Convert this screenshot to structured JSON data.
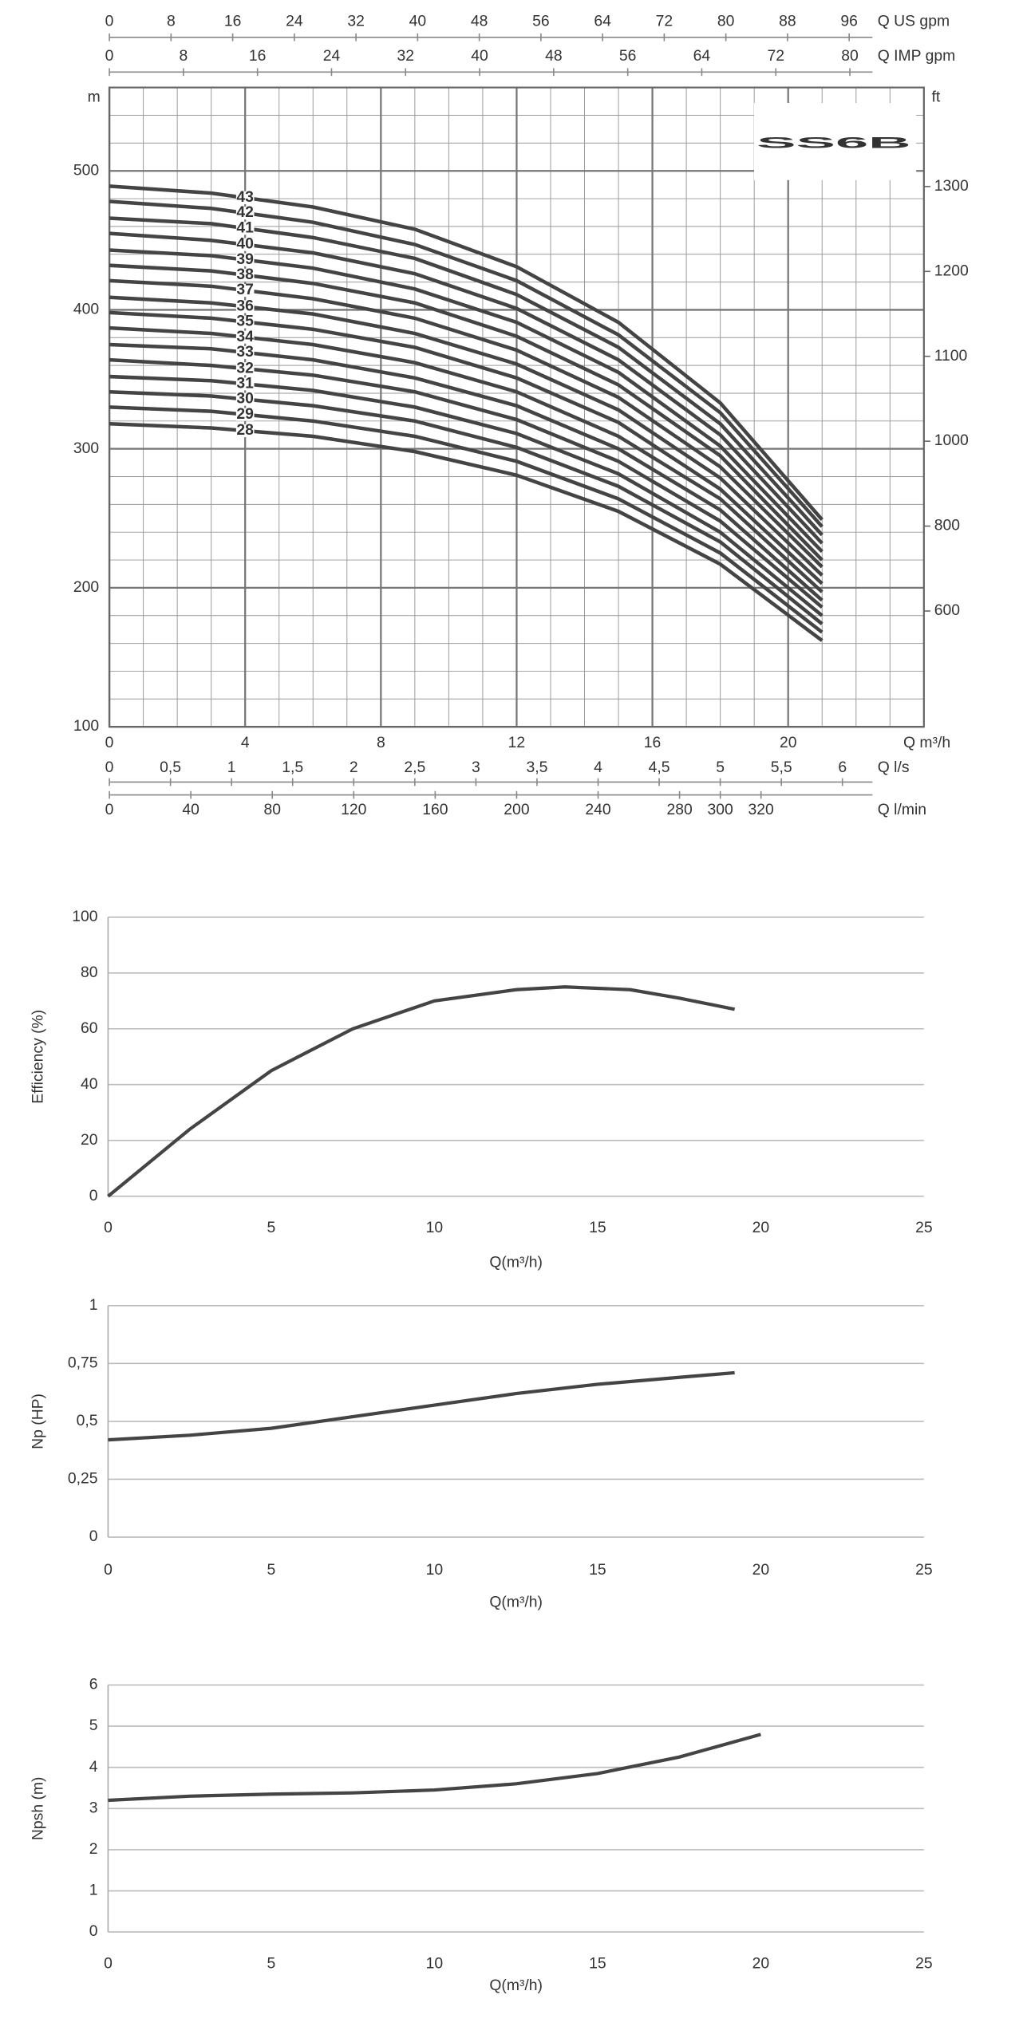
{
  "chart_data": [
    {
      "type": "line",
      "title": "SS6B",
      "ylabel": "m",
      "y2label": "ft",
      "xlabel": "Q m³/h",
      "x": [
        0,
        3,
        6,
        9,
        12,
        15,
        18,
        21
      ],
      "xlim": [
        0,
        24
      ],
      "xticks": [
        0,
        4,
        8,
        12,
        16,
        20
      ],
      "ylim": [
        100,
        560
      ],
      "yticks": [
        100,
        200,
        300,
        400,
        500
      ],
      "y2ticks": [
        1300,
        1200,
        1100,
        1000,
        800,
        600
      ],
      "grid": true,
      "minor_grid": true,
      "secondary_x_axes": [
        {
          "label": "Q US gpm",
          "side": "top",
          "xlim": [
            0,
            105.7
          ],
          "xticks": [
            0,
            8,
            16,
            24,
            32,
            40,
            48,
            56,
            64,
            72,
            80,
            88,
            96
          ]
        },
        {
          "label": "Q IMP gpm",
          "side": "top",
          "xlim": [
            0,
            88
          ],
          "xticks": [
            0,
            8,
            16,
            24,
            32,
            40,
            48,
            56,
            64,
            72,
            80
          ]
        },
        {
          "label": "Q l/s",
          "side": "bottom",
          "xlim": [
            0,
            6.667
          ],
          "xticks": [
            0,
            {
              "value": 0.5,
              "label": "0,5"
            },
            1,
            {
              "value": 1.5,
              "label": "1,5"
            },
            2,
            {
              "value": 2.5,
              "label": "2,5"
            },
            3,
            {
              "value": 3.5,
              "label": "3,5"
            },
            4,
            {
              "value": 4.5,
              "label": "4,5"
            },
            5,
            {
              "value": 5.5,
              "label": "5,5"
            },
            6
          ]
        },
        {
          "label": "Q l/min",
          "side": "bottom",
          "xlim": [
            0,
            400
          ],
          "xticks": [
            0,
            40,
            80,
            120,
            160,
            200,
            240,
            280,
            300,
            320
          ]
        }
      ],
      "series": [
        {
          "name": "28",
          "color": "#444444",
          "values": [
            318,
            315,
            309,
            298,
            281,
            255,
            217,
            162
          ]
        },
        {
          "name": "29",
          "color": "#444444",
          "values": [
            330,
            327,
            320,
            309,
            291,
            264,
            225,
            168
          ]
        },
        {
          "name": "30",
          "color": "#444444",
          "values": [
            341,
            338,
            331,
            320,
            301,
            273,
            233,
            174
          ]
        },
        {
          "name": "31",
          "color": "#444444",
          "values": [
            352,
            349,
            342,
            330,
            311,
            282,
            240,
            180
          ]
        },
        {
          "name": "32",
          "color": "#444444",
          "values": [
            364,
            360,
            353,
            341,
            321,
            291,
            248,
            186
          ]
        },
        {
          "name": "33",
          "color": "#444444",
          "values": [
            375,
            372,
            364,
            351,
            331,
            300,
            256,
            191
          ]
        },
        {
          "name": "34",
          "color": "#444444",
          "values": [
            387,
            383,
            375,
            362,
            341,
            309,
            264,
            197
          ]
        },
        {
          "name": "35",
          "color": "#444444",
          "values": [
            398,
            394,
            386,
            373,
            351,
            319,
            271,
            203
          ]
        },
        {
          "name": "36",
          "color": "#444444",
          "values": [
            409,
            405,
            397,
            383,
            361,
            328,
            279,
            209
          ]
        },
        {
          "name": "37",
          "color": "#444444",
          "values": [
            421,
            417,
            408,
            394,
            371,
            337,
            287,
            215
          ]
        },
        {
          "name": "38",
          "color": "#444444",
          "values": [
            432,
            428,
            419,
            405,
            381,
            346,
            295,
            220
          ]
        },
        {
          "name": "39",
          "color": "#444444",
          "values": [
            443,
            439,
            430,
            415,
            391,
            355,
            302,
            226
          ]
        },
        {
          "name": "40",
          "color": "#444444",
          "values": [
            455,
            450,
            441,
            426,
            401,
            364,
            310,
            232
          ]
        },
        {
          "name": "41",
          "color": "#444444",
          "values": [
            466,
            462,
            452,
            437,
            411,
            373,
            318,
            238
          ]
        },
        {
          "name": "42",
          "color": "#444444",
          "values": [
            478,
            473,
            463,
            447,
            421,
            382,
            326,
            244
          ]
        },
        {
          "name": "43",
          "color": "#444444",
          "values": [
            489,
            484,
            474,
            458,
            431,
            391,
            333,
            249
          ]
        }
      ]
    },
    {
      "type": "line",
      "xlabel": "Q(m³/h)",
      "ylabel": "Efficiency (%)",
      "x": [
        0,
        2.5,
        5,
        7.5,
        10,
        12.5,
        14,
        16,
        17.5,
        19.2
      ],
      "values": [
        0,
        24,
        45,
        60,
        70,
        74,
        75,
        74,
        71,
        67
      ],
      "xlim": [
        0,
        25
      ],
      "xticks": [
        0,
        5,
        10,
        15,
        20,
        25
      ],
      "ylim": [
        0,
        100
      ],
      "yticks": [
        0,
        20,
        40,
        60,
        80,
        100
      ],
      "grid": true,
      "color": "#444444"
    },
    {
      "type": "line",
      "xlabel": "Q(m³/h)",
      "ylabel": "Np (HP)",
      "x": [
        0,
        2.5,
        5,
        7.5,
        10,
        12.5,
        15,
        17.5,
        19.2
      ],
      "values": [
        0.42,
        0.44,
        0.47,
        0.52,
        0.57,
        0.62,
        0.66,
        0.69,
        0.71
      ],
      "xlim": [
        0,
        25
      ],
      "xticks": [
        0,
        5,
        10,
        15,
        20,
        25
      ],
      "ylim": [
        0,
        1
      ],
      "yticks": [
        0,
        {
          "value": 0.25,
          "label": "0,25"
        },
        {
          "value": 0.5,
          "label": "0,5"
        },
        {
          "value": 0.75,
          "label": "0,75"
        },
        1
      ],
      "grid": true,
      "color": "#444444"
    },
    {
      "type": "line",
      "xlabel": "Q(m³/h)",
      "ylabel": "Npsh (m)",
      "x": [
        0,
        2.5,
        5,
        7.5,
        10,
        12.5,
        15,
        17.5,
        20
      ],
      "values": [
        3.2,
        3.3,
        3.35,
        3.38,
        3.45,
        3.6,
        3.85,
        4.25,
        4.8
      ],
      "xlim": [
        0,
        25
      ],
      "xticks": [
        0,
        5,
        10,
        15,
        20,
        25
      ],
      "ylim": [
        0,
        6
      ],
      "yticks": [
        0,
        1,
        2,
        3,
        4,
        5,
        6
      ],
      "grid": true,
      "color": "#444444"
    }
  ]
}
